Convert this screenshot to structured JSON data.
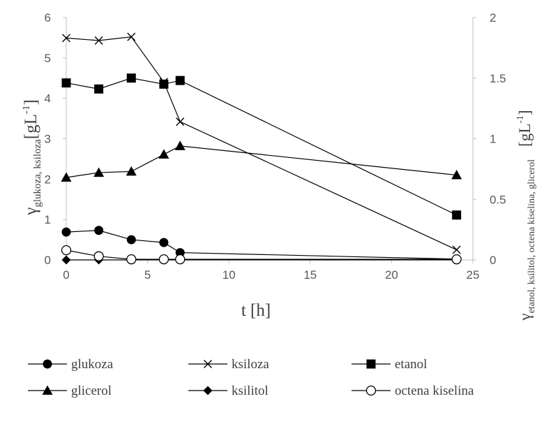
{
  "chart_data": {
    "type": "scatter",
    "x_axis": {
      "label": "t [h]",
      "range": [
        0,
        25
      ],
      "ticks": [
        "0",
        "5",
        "10",
        "15",
        "20",
        "25"
      ]
    },
    "y_axis_left": {
      "label_main": "γ",
      "label_sub": "glukoza, ksiloza",
      "label_unit": "[gL",
      "label_unit_exp": "-1",
      "label_unit_end": "]",
      "range": [
        0,
        6
      ],
      "ticks": [
        "0",
        "1",
        "2",
        "3",
        "4",
        "5",
        "6"
      ]
    },
    "y_axis_right": {
      "label_main": "γ",
      "label_sub": "etanol, ksilitol, octena kiselina, glicerol",
      "label_unit": "[gL",
      "label_unit_exp": "-1",
      "label_unit_end": "]",
      "range": [
        0,
        2
      ],
      "ticks": [
        "0",
        "0.5",
        "1",
        "1.5",
        "2"
      ]
    },
    "grid": false,
    "legend_position": "bottom",
    "series": [
      {
        "name": "glukoza",
        "marker": "circle-filled",
        "axis": "left",
        "points": [
          [
            0,
            0.69
          ],
          [
            2,
            0.73
          ],
          [
            4,
            0.5
          ],
          [
            6,
            0.43
          ],
          [
            7,
            0.18
          ],
          [
            24,
            0.02
          ]
        ]
      },
      {
        "name": "ksiloza",
        "marker": "x",
        "axis": "left",
        "points": [
          [
            0,
            5.49
          ],
          [
            2,
            5.43
          ],
          [
            4,
            5.52
          ],
          [
            6,
            4.4
          ],
          [
            7,
            3.42
          ],
          [
            24,
            0.25
          ]
        ]
      },
      {
        "name": "etanol",
        "marker": "square",
        "axis": "right",
        "points": [
          [
            0,
            1.46
          ],
          [
            2,
            1.41
          ],
          [
            4,
            1.5
          ],
          [
            6,
            1.45
          ],
          [
            7,
            1.48
          ],
          [
            24,
            0.37
          ]
        ]
      },
      {
        "name": "glicerol",
        "marker": "triangle",
        "axis": "right",
        "points": [
          [
            0,
            0.68
          ],
          [
            2,
            0.72
          ],
          [
            4,
            0.73
          ],
          [
            6,
            0.87
          ],
          [
            7,
            0.94
          ],
          [
            24,
            0.7
          ]
        ]
      },
      {
        "name": "ksilitol",
        "marker": "diamond",
        "axis": "right",
        "points": [
          [
            0,
            0.0
          ],
          [
            2,
            0.0
          ],
          [
            4,
            0.0
          ],
          [
            6,
            0.0
          ],
          [
            7,
            0.0
          ],
          [
            24,
            0.0
          ]
        ]
      },
      {
        "name": "octena kiselina",
        "marker": "circle-open",
        "axis": "right",
        "points": [
          [
            0,
            0.08
          ],
          [
            2,
            0.03
          ],
          [
            4,
            0.005
          ],
          [
            6,
            0.005
          ],
          [
            7,
            0.005
          ],
          [
            24,
            0.005
          ]
        ]
      }
    ]
  }
}
